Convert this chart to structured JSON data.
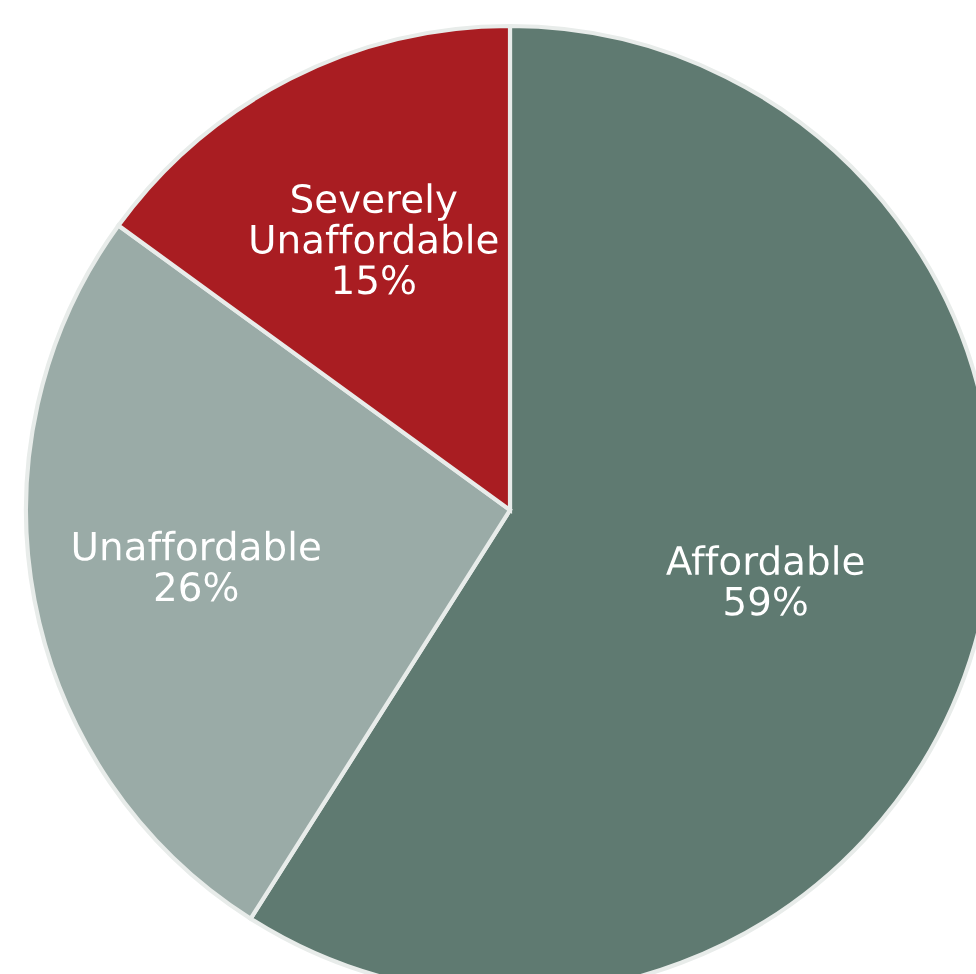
{
  "chart_data": {
    "type": "pie",
    "categories": [
      "Affordable",
      "Unaffordable",
      "Severely Unaffordable"
    ],
    "values": [
      59,
      26,
      15
    ],
    "value_labels": [
      "59%",
      "26%",
      "15%"
    ],
    "colors": [
      "#5f7a71",
      "#9aaba7",
      "#a91d22"
    ]
  }
}
